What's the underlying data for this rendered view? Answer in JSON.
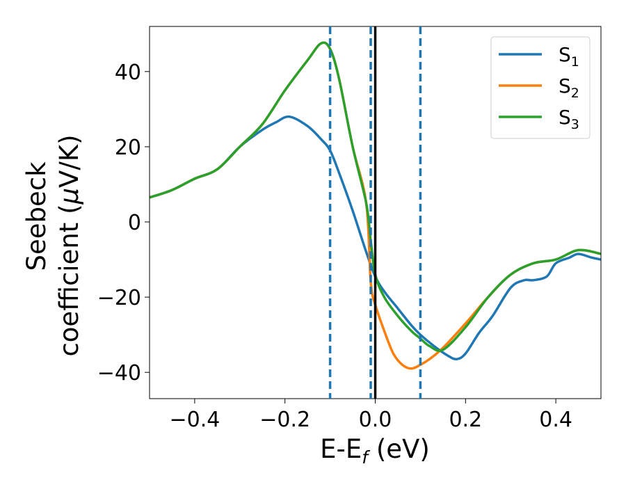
{
  "chart_data": {
    "type": "line",
    "xlabel": {
      "main": "E-E",
      "sub": "f",
      "unit": " (eV)"
    },
    "ylabel": {
      "line1": "Seebeck",
      "line2": "coefficient  (",
      "mu": "μ",
      "line2_end": "V/K)"
    },
    "xlim": [
      -0.5,
      0.5
    ],
    "ylim": [
      -47,
      52
    ],
    "xticks": [
      -0.4,
      -0.2,
      0.0,
      0.2,
      0.4
    ],
    "xtick_labels": [
      "−0.4",
      "−0.2",
      "0.0",
      "0.2",
      "0.4"
    ],
    "yticks": [
      -40,
      -20,
      0,
      20,
      40
    ],
    "ytick_labels": [
      "−40",
      "−20",
      "0",
      "20",
      "40"
    ],
    "grid": false,
    "legend_position": "top-right",
    "vlines": [
      {
        "x": -0.1,
        "style": "dashed",
        "color": "#1f77b4"
      },
      {
        "x": -0.01,
        "style": "dashed",
        "color": "#1f77b4"
      },
      {
        "x": 0.0,
        "style": "solid",
        "color": "#000000"
      },
      {
        "x": 0.1,
        "style": "dashed",
        "color": "#1f77b4"
      }
    ],
    "series": [
      {
        "name": "S",
        "sub": "1",
        "color": "#1f77b4",
        "x": [
          -0.5,
          -0.45,
          -0.4,
          -0.35,
          -0.3,
          -0.25,
          -0.22,
          -0.19,
          -0.15,
          -0.12,
          -0.1,
          -0.08,
          -0.05,
          -0.02,
          0.0,
          0.02,
          0.05,
          0.08,
          0.1,
          0.13,
          0.16,
          0.18,
          0.2,
          0.23,
          0.26,
          0.3,
          0.33,
          0.35,
          0.38,
          0.4,
          0.43,
          0.45,
          0.48,
          0.5
        ],
        "y": [
          6.5,
          8.5,
          11.5,
          14,
          20,
          24.5,
          26.5,
          28,
          25.5,
          22,
          19,
          13,
          3,
          -8,
          -14.5,
          -18.5,
          -23,
          -27.5,
          -30,
          -33,
          -35.5,
          -36.5,
          -35,
          -29.5,
          -25,
          -17.5,
          -15.5,
          -15.5,
          -14.5,
          -11,
          -9.5,
          -8.5,
          -9.5,
          -10
        ]
      },
      {
        "name": "S",
        "sub": "2",
        "color": "#ff7f0e",
        "x": [
          -0.5,
          -0.45,
          -0.4,
          -0.35,
          -0.3,
          -0.25,
          -0.2,
          -0.15,
          -0.12,
          -0.1,
          -0.08,
          -0.05,
          -0.02,
          -0.01,
          0.0,
          0.02,
          0.04,
          0.06,
          0.08,
          0.1,
          0.12,
          0.15,
          0.2,
          0.25,
          0.3,
          0.35,
          0.4,
          0.45,
          0.5
        ],
        "y": [
          6.5,
          8.5,
          11.5,
          14,
          20,
          26,
          35,
          43,
          47.5,
          46,
          38,
          20,
          5,
          -16,
          -22,
          -29,
          -35,
          -38,
          -39,
          -38,
          -36.5,
          -33.5,
          -27,
          -20,
          -14,
          -11,
          -10,
          -7.5,
          -8.5
        ]
      },
      {
        "name": "S",
        "sub": "3",
        "color": "#2ca02c",
        "x": [
          -0.5,
          -0.45,
          -0.4,
          -0.35,
          -0.3,
          -0.25,
          -0.2,
          -0.15,
          -0.12,
          -0.1,
          -0.08,
          -0.05,
          -0.02,
          -0.01,
          0.0,
          0.02,
          0.05,
          0.08,
          0.1,
          0.12,
          0.15,
          0.2,
          0.25,
          0.3,
          0.35,
          0.4,
          0.45,
          0.5
        ],
        "y": [
          6.5,
          8.5,
          11.5,
          14,
          20,
          26,
          35,
          43,
          47.5,
          46,
          38,
          20,
          5,
          -5,
          -14,
          -20,
          -25,
          -29,
          -31,
          -33,
          -34,
          -28,
          -20,
          -14,
          -11,
          -10,
          -7.5,
          -8.5
        ]
      }
    ]
  }
}
